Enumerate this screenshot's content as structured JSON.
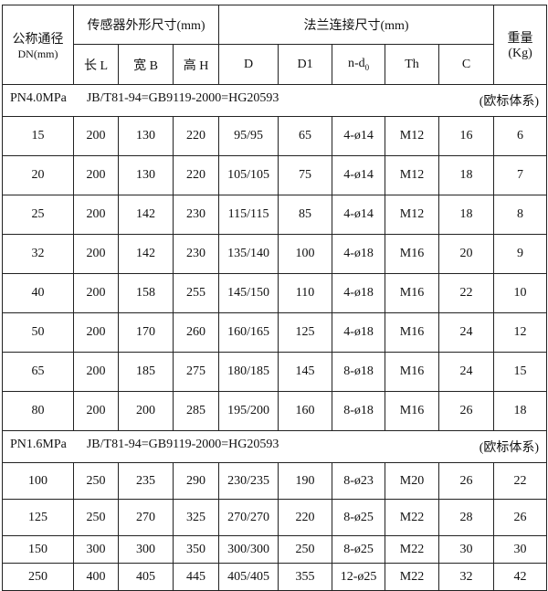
{
  "header": {
    "dn_label": "公称通径",
    "dn_unit": "DN(mm)",
    "sensor_group": "传感器外形尺寸(mm)",
    "flange_group": "法兰连接尺寸(mm)",
    "weight_label": "重量",
    "weight_unit": "(Kg)",
    "columns": [
      "长 L",
      "宽 B",
      "高 H",
      "D",
      "D1",
      "n-d",
      "Th",
      "C"
    ],
    "nd_sub": "0"
  },
  "sections": [
    {
      "pressure": "PN4.0MPa",
      "standard": "JB/T81-94=GB9119-2000=HG20593",
      "system": "(欧标体系)",
      "rows": [
        [
          "15",
          "200",
          "130",
          "220",
          "95/95",
          "65",
          "4-ø14",
          "M12",
          "16",
          "6"
        ],
        [
          "20",
          "200",
          "130",
          "220",
          "105/105",
          "75",
          "4-ø14",
          "M12",
          "18",
          "7"
        ],
        [
          "25",
          "200",
          "142",
          "230",
          "115/115",
          "85",
          "4-ø14",
          "M12",
          "18",
          "8"
        ],
        [
          "32",
          "200",
          "142",
          "230",
          "135/140",
          "100",
          "4-ø18",
          "M16",
          "20",
          "9"
        ],
        [
          "40",
          "200",
          "158",
          "255",
          "145/150",
          "110",
          "4-ø18",
          "M16",
          "22",
          "10"
        ],
        [
          "50",
          "200",
          "170",
          "260",
          "160/165",
          "125",
          "4-ø18",
          "M16",
          "24",
          "12"
        ],
        [
          "65",
          "200",
          "185",
          "275",
          "180/185",
          "145",
          "8-ø18",
          "M16",
          "24",
          "15"
        ],
        [
          "80",
          "200",
          "200",
          "285",
          "195/200",
          "160",
          "8-ø18",
          "M16",
          "26",
          "18"
        ]
      ]
    },
    {
      "pressure": "PN1.6MPa",
      "standard": "JB/T81-94=GB9119-2000=HG20593",
      "system": "(欧标体系)",
      "rows": [
        [
          "100",
          "250",
          "235",
          "290",
          "230/235",
          "190",
          "8-ø23",
          "M20",
          "26",
          "22"
        ],
        [
          "125",
          "250",
          "270",
          "325",
          "270/270",
          "220",
          "8-ø25",
          "M22",
          "28",
          "26"
        ],
        [
          "150",
          "300",
          "300",
          "350",
          "300/300",
          "250",
          "8-ø25",
          "M22",
          "30",
          "30"
        ],
        [
          "250",
          "400",
          "405",
          "445",
          "405/405",
          "355",
          "12-ø25",
          "M22",
          "32",
          "42"
        ]
      ]
    }
  ]
}
